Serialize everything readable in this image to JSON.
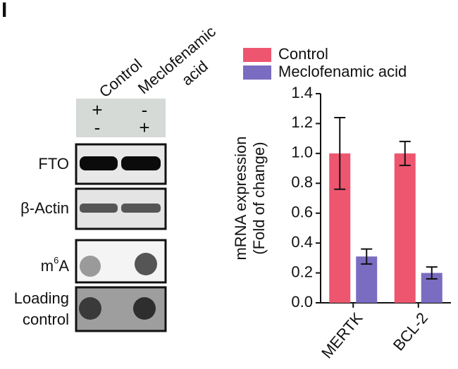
{
  "panel_label": "I",
  "blot": {
    "columns": [
      "Control",
      [
        "Meclofenamic",
        "acid"
      ]
    ],
    "treatment_rows": [
      [
        "+",
        "-"
      ],
      [
        "-",
        "+"
      ]
    ],
    "row_labels": [
      "FTO",
      "β-Actin"
    ],
    "m6a_label": {
      "base": "m",
      "sup": "6",
      "rest": "A"
    },
    "loading_label": [
      "Loading",
      "control"
    ]
  },
  "chart_data": {
    "type": "bar",
    "ylabel": [
      "mRNA expression",
      "(Fold of change)"
    ],
    "categories": [
      "MERTK",
      "BCL-2"
    ],
    "series": [
      {
        "name": "Control",
        "color": "#ee5670",
        "values": [
          1.0,
          1.0
        ],
        "errors": [
          0.24,
          0.08
        ]
      },
      {
        "name": "Meclofenamic acid",
        "color": "#7a6cc1",
        "values": [
          0.31,
          0.2
        ],
        "errors": [
          0.05,
          0.04
        ]
      }
    ],
    "ylim": [
      0,
      1.4
    ],
    "yticks": [
      {
        "value": 0,
        "label": "0.0"
      },
      0.2,
      0.4,
      0.6,
      0.8,
      {
        "value": 1,
        "label": "1.0"
      },
      1.2,
      1.4
    ]
  }
}
